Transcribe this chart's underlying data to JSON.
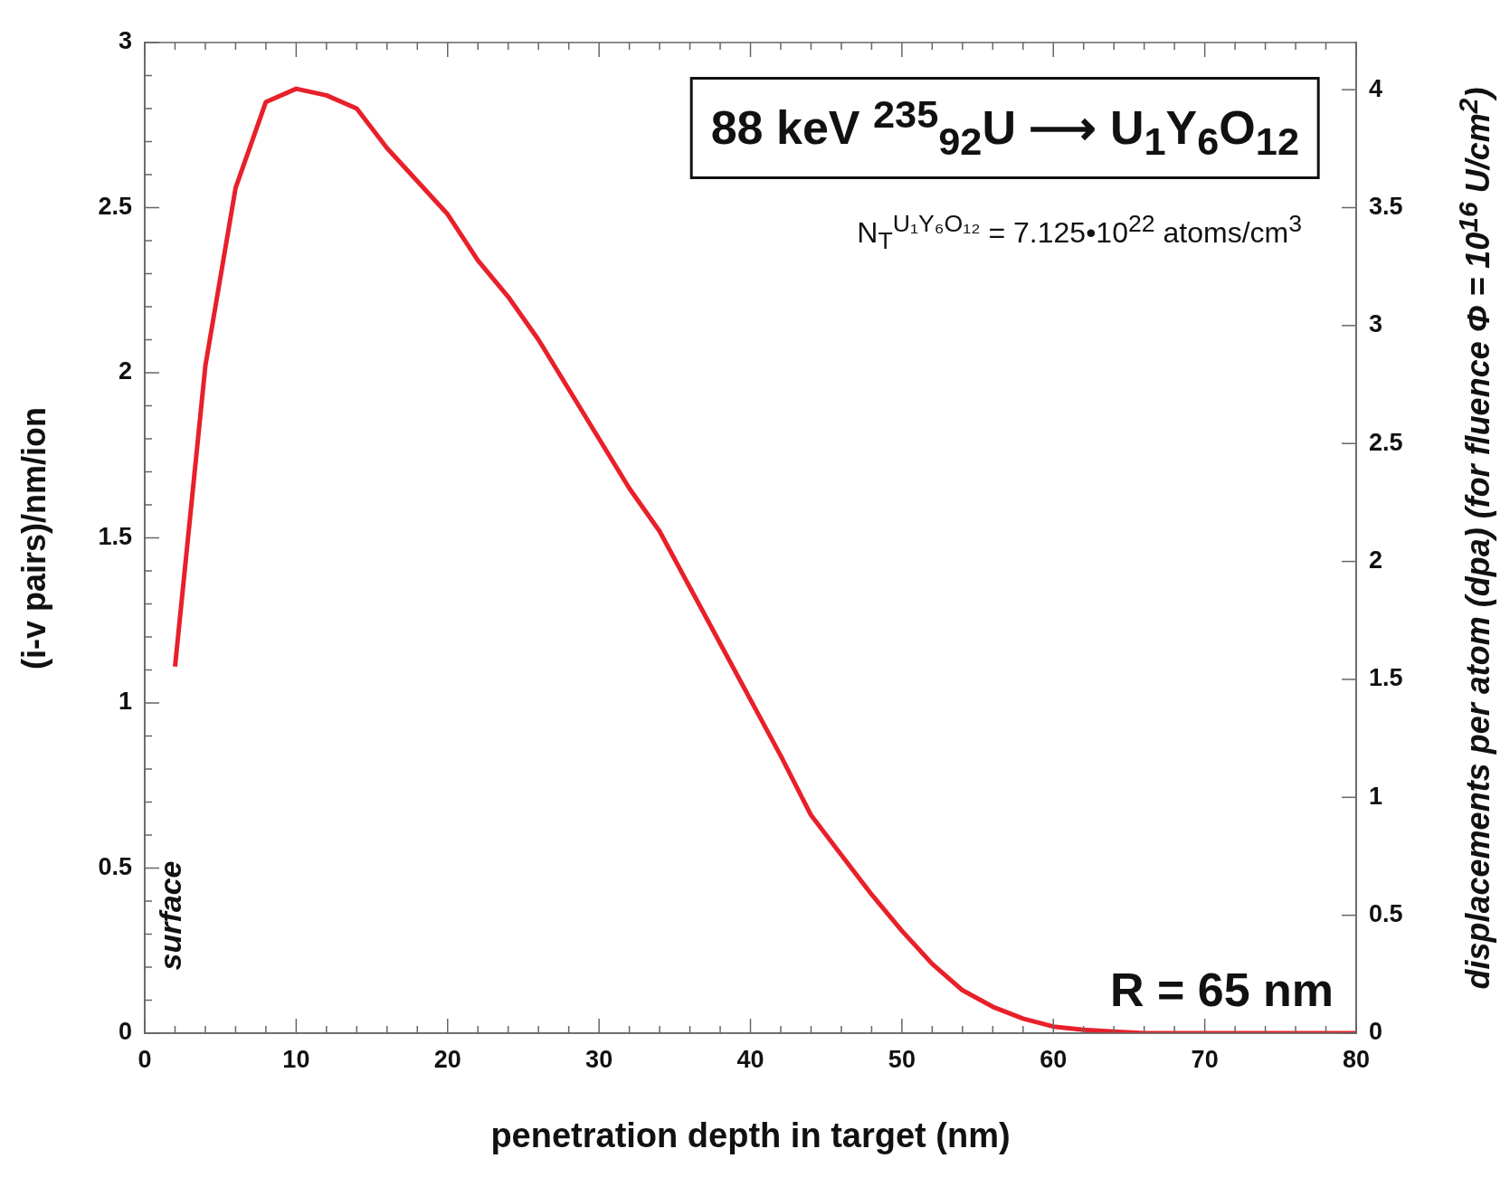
{
  "chart_data": {
    "type": "line",
    "xlabel": "penetration depth in target (nm)",
    "ylabel": "(i-v pairs)/nm/ion",
    "y2label": "displacements per atom (dpa)  (for fluence Φ = 10$^{16}$ U/cm$^{2}$)",
    "annotations": [
      "88 keV $^{235}$$_{92}$U ⟶ U$_{1}$Y$_{6}$O$_{12}$",
      "N$_{T}$$^{U₁Y₆O₁₂}$ = 7.125•10$^{22}$ atoms/cm$^{3}$",
      "surface",
      "R = 65 nm"
    ],
    "x": [
      2,
      4,
      6,
      8,
      10,
      12,
      14,
      16,
      18,
      20,
      22,
      24,
      26,
      28,
      30,
      32,
      34,
      36,
      38,
      40,
      42,
      44,
      46,
      48,
      50,
      52,
      54,
      56,
      58,
      60,
      62,
      64,
      66,
      68,
      70,
      72,
      74,
      76,
      78,
      80
    ],
    "series": [
      {
        "color": "#e8202a",
        "values": [
          1.11,
          2.02,
          2.56,
          2.82,
          2.86,
          2.84,
          2.8,
          2.68,
          2.58,
          2.48,
          2.34,
          2.23,
          2.1,
          1.95,
          1.8,
          1.65,
          1.52,
          1.35,
          1.18,
          1.01,
          0.84,
          0.66,
          0.54,
          0.42,
          0.31,
          0.21,
          0.13,
          0.08,
          0.044,
          0.02,
          0.01,
          0.005,
          0,
          0,
          0,
          0,
          0,
          0,
          0,
          0
        ]
      }
    ],
    "xlim": [
      0,
      80
    ],
    "ylim": [
      0,
      3
    ],
    "y2lim": [
      0,
      4.2
    ],
    "xticks": [
      0,
      {
        "value": 2,
        "label": null
      },
      {
        "value": 4,
        "label": null
      },
      {
        "value": 6,
        "label": null
      },
      {
        "value": 8,
        "label": null
      },
      10,
      {
        "value": 12,
        "label": null
      },
      {
        "value": 14,
        "label": null
      },
      {
        "value": 16,
        "label": null
      },
      {
        "value": 18,
        "label": null
      },
      20,
      {
        "value": 22,
        "label": null
      },
      {
        "value": 24,
        "label": null
      },
      {
        "value": 26,
        "label": null
      },
      {
        "value": 28,
        "label": null
      },
      30,
      {
        "value": 32,
        "label": null
      },
      {
        "value": 34,
        "label": null
      },
      {
        "value": 36,
        "label": null
      },
      {
        "value": 38,
        "label": null
      },
      40,
      {
        "value": 42,
        "label": null
      },
      {
        "value": 44,
        "label": null
      },
      {
        "value": 46,
        "label": null
      },
      {
        "value": 48,
        "label": null
      },
      50,
      {
        "value": 52,
        "label": null
      },
      {
        "value": 54,
        "label": null
      },
      {
        "value": 56,
        "label": null
      },
      {
        "value": 58,
        "label": null
      },
      60,
      {
        "value": 62,
        "label": null
      },
      {
        "value": 64,
        "label": null
      },
      {
        "value": 66,
        "label": null
      },
      {
        "value": 68,
        "label": null
      },
      70,
      {
        "value": 72,
        "label": null
      },
      {
        "value": 74,
        "label": null
      },
      {
        "value": 76,
        "label": null
      },
      {
        "value": 78,
        "label": null
      },
      80
    ],
    "yticks": [
      0,
      {
        "value": 0.1,
        "label": null
      },
      {
        "value": 0.2,
        "label": null
      },
      {
        "value": 0.3,
        "label": null
      },
      {
        "value": 0.4,
        "label": null
      },
      0.5,
      {
        "value": 0.6,
        "label": null
      },
      {
        "value": 0.7,
        "label": null
      },
      {
        "value": 0.8,
        "label": null
      },
      {
        "value": 0.9,
        "label": null
      },
      1,
      {
        "value": 1.1,
        "label": null
      },
      {
        "value": 1.2,
        "label": null
      },
      {
        "value": 1.3,
        "label": null
      },
      {
        "value": 1.4,
        "label": null
      },
      1.5,
      {
        "value": 1.6,
        "label": null
      },
      {
        "value": 1.7,
        "label": null
      },
      {
        "value": 1.8,
        "label": null
      },
      {
        "value": 1.9,
        "label": null
      },
      2,
      {
        "value": 2.1,
        "label": null
      },
      {
        "value": 2.2,
        "label": null
      },
      {
        "value": 2.3,
        "label": null
      },
      {
        "value": 2.4,
        "label": null
      },
      2.5,
      {
        "value": 2.6,
        "label": null
      },
      {
        "value": 2.7,
        "label": null
      },
      {
        "value": 2.8,
        "label": null
      },
      {
        "value": 2.9,
        "label": null
      },
      3
    ],
    "y2ticks": [
      0,
      0.5,
      1,
      1.5,
      2,
      2.5,
      3,
      3.5,
      4
    ],
    "grid": false,
    "legend": false,
    "marker": "none",
    "line_style": "solid"
  }
}
